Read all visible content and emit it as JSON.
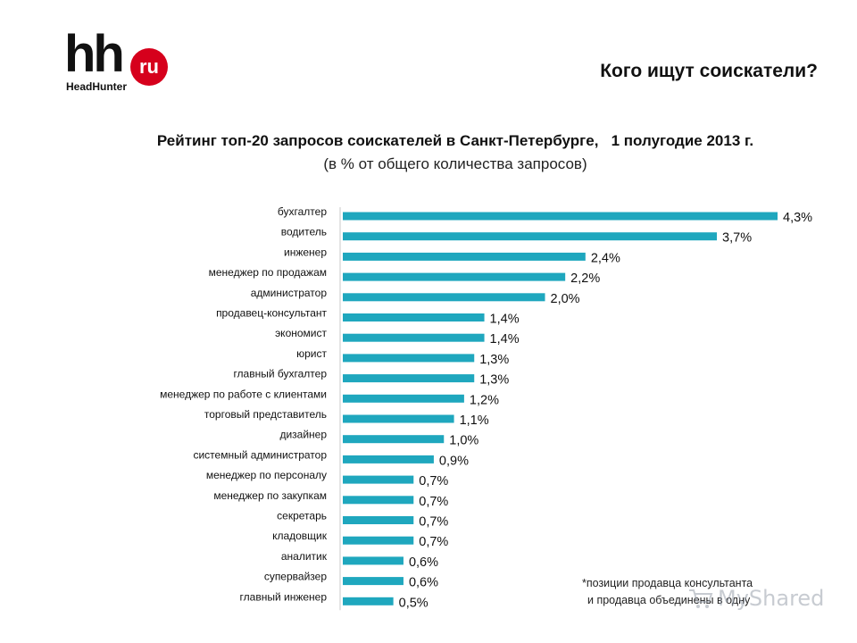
{
  "logo": {
    "main": "hh",
    "badge": "ru",
    "sub": "HeadHunter"
  },
  "page_title": "Кого ищут соискатели?",
  "note": {
    "line1": "*позиции продавца консультанта",
    "line2": "и продавца объединены в одну"
  },
  "watermark": {
    "text": "MyShared",
    "icon": "cart-icon"
  },
  "colors": {
    "bar": "#1fa7be",
    "text": "#111111"
  },
  "chart_data": {
    "type": "bar",
    "orientation": "horizontal",
    "title": "Рейтинг топ-20 запросов соискателей в Санкт-Петербурге,   1 полугодие 2013 г.",
    "subtitle": "(в % от общего количества запросов)",
    "categories": [
      "бухгалтер",
      "водитель",
      "инженер",
      "менеджер по продажам",
      "администратор",
      "продавец-консультант",
      "экономист",
      "юрист",
      "главный бухгалтер",
      "менеджер по работе с клиентами",
      "торговый представитель",
      "дизайнер",
      "системный администратор",
      "менеджер по персоналу",
      "менеджер по закупкам",
      "секретарь",
      "кладовщик",
      "аналитик",
      "супервайзер",
      "главный инженер"
    ],
    "values": [
      4.3,
      3.7,
      2.4,
      2.2,
      2.0,
      1.4,
      1.4,
      1.3,
      1.3,
      1.2,
      1.1,
      1.0,
      0.9,
      0.7,
      0.7,
      0.7,
      0.7,
      0.6,
      0.6,
      0.5
    ],
    "value_labels": [
      "4,3%",
      "3,7%",
      "2,4%",
      "2,2%",
      "2,0%",
      "1,4%",
      "1,4%",
      "1,3%",
      "1,3%",
      "1,2%",
      "1,1%",
      "1,0%",
      "0,9%",
      "0,7%",
      "0,7%",
      "0,7%",
      "0,7%",
      "0,6%",
      "0,6%",
      "0,5%"
    ],
    "xlim": [
      0,
      4.3
    ],
    "grid": false,
    "legend": "none"
  }
}
